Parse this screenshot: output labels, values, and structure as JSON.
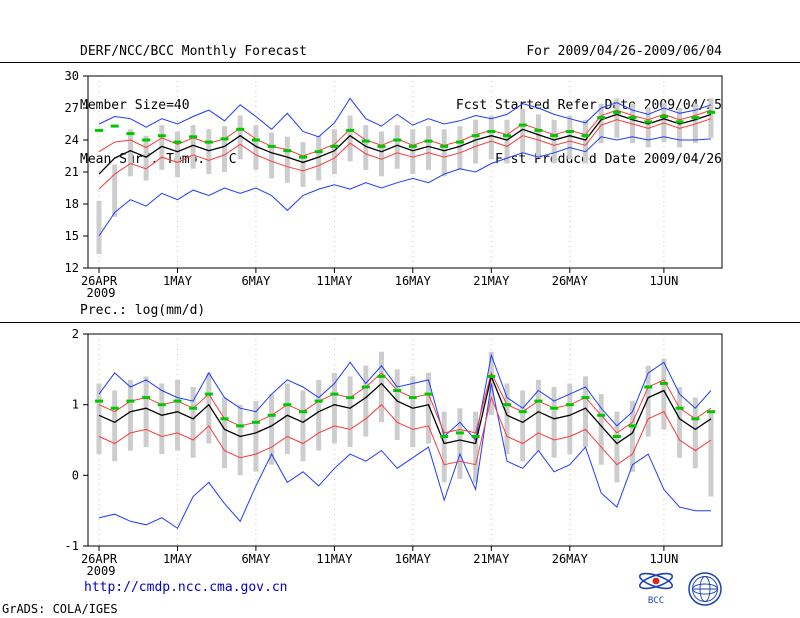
{
  "header": {
    "title": "DERF/NCC/BCC Monthly Forecast",
    "member_size": "Member Size=40",
    "temp_label": "Mean Surf. Temp.: °C",
    "forecast_range": "For 2009/04/26-2009/06/04",
    "refer_date": "Fcst Started Refer Date 2009/04/25",
    "produced_date": "Fcst Produced Date 2009/04/26"
  },
  "prec_label": "Prec.: log(mm/d)",
  "footer": {
    "url": "http://cmdp.ncc.cma.gov.cn",
    "credit": "GrADS: COLA/IGES",
    "bcc_logo_text": "BCC"
  },
  "colors": {
    "ensemble_bounds": "#1e3cff",
    "quartiles": "#fa3c3c",
    "mean": "#000000",
    "observation": "#00c800",
    "spread_bars": "#cdcdcd",
    "url": "#0000cc"
  },
  "chart_data": [
    {
      "id": "temp",
      "type": "line",
      "title": "Mean Surf. Temp.: °C",
      "ylabel": "°C",
      "ylim": [
        12,
        30
      ],
      "yticks": [
        12,
        15,
        18,
        21,
        24,
        27,
        30
      ],
      "xlim": [
        -0.7,
        39.7
      ],
      "grid": "dotted-vertical-at-xticks",
      "legend": "none",
      "xticks": [
        {
          "pos": 0,
          "label": "26APR",
          "sublabel": "2009"
        },
        {
          "pos": 5,
          "label": "1MAY"
        },
        {
          "pos": 10,
          "label": "6MAY"
        },
        {
          "pos": 15,
          "label": "11MAY"
        },
        {
          "pos": 20,
          "label": "16MAY"
        },
        {
          "pos": 25,
          "label": "21MAY"
        },
        {
          "pos": 30,
          "label": "26MAY"
        },
        {
          "pos": 36,
          "label": "1JUN"
        }
      ],
      "series": [
        {
          "name": "member-spread-bars",
          "style": "bars",
          "color": "#cdcdcd",
          "low": [
            13.3,
            16.8,
            20.6,
            20.2,
            21.2,
            20.5,
            21.3,
            20.8,
            21.0,
            22.2,
            21.2,
            20.4,
            20.0,
            19.6,
            20.2,
            20.8,
            22.0,
            21.2,
            20.6,
            21.3,
            20.8,
            21.2,
            20.6,
            21.2,
            21.8,
            22.2,
            21.8,
            22.8,
            22.3,
            21.8,
            22.2,
            21.8,
            23.7,
            24.2,
            23.7,
            23.3,
            23.8,
            23.3,
            23.7,
            24.2
          ],
          "high": [
            18.3,
            21.7,
            25.0,
            24.4,
            25.4,
            24.8,
            25.4,
            25.0,
            25.3,
            26.3,
            25.4,
            24.7,
            24.3,
            23.8,
            24.4,
            25.0,
            26.3,
            25.4,
            24.8,
            25.4,
            25.0,
            25.3,
            25.0,
            25.3,
            25.9,
            26.3,
            25.9,
            26.9,
            26.4,
            25.9,
            26.3,
            25.9,
            27.4,
            27.9,
            27.4,
            27.0,
            27.5,
            27.0,
            27.4,
            27.9
          ]
        },
        {
          "name": "ensemble-max",
          "style": "line",
          "color": "#1e3cff",
          "width": 1,
          "values": [
            25.5,
            26.2,
            26.0,
            25.2,
            26.0,
            25.5,
            26.2,
            26.8,
            25.8,
            27.3,
            26.2,
            25.0,
            26.5,
            24.8,
            24.3,
            25.6,
            27.9,
            26.0,
            25.3,
            26.4,
            25.4,
            26.0,
            25.5,
            25.8,
            26.3,
            26.0,
            26.4,
            27.4,
            27.0,
            26.4,
            26.0,
            25.6,
            27.0,
            27.5,
            26.8,
            26.4,
            27.0,
            26.5,
            26.8,
            27.3
          ]
        },
        {
          "name": "ensemble-min",
          "style": "line",
          "color": "#1e3cff",
          "width": 1,
          "values": [
            15.0,
            17.2,
            18.4,
            17.8,
            19.0,
            18.4,
            19.3,
            18.8,
            19.5,
            19.0,
            19.5,
            18.8,
            17.4,
            18.8,
            19.4,
            19.8,
            19.4,
            20.0,
            19.5,
            20.0,
            20.4,
            20.0,
            20.8,
            21.3,
            21.0,
            21.8,
            22.3,
            22.8,
            22.4,
            22.8,
            23.3,
            22.9,
            24.3,
            24.0,
            24.3,
            24.0,
            24.3,
            24.0,
            24.0,
            24.1
          ]
        },
        {
          "name": "upper-quartile",
          "style": "line",
          "color": "#fa3c3c",
          "width": 1,
          "values": [
            22.9,
            23.8,
            24.0,
            23.3,
            24.2,
            23.6,
            24.2,
            23.7,
            24.1,
            25.1,
            24.1,
            23.4,
            23.1,
            22.5,
            23.0,
            23.6,
            25.0,
            24.0,
            23.5,
            24.1,
            23.5,
            24.0,
            23.5,
            23.9,
            24.5,
            24.9,
            24.5,
            25.5,
            25.0,
            24.5,
            24.9,
            24.5,
            26.3,
            26.8,
            26.3,
            25.9,
            26.4,
            25.9,
            26.3,
            26.8
          ]
        },
        {
          "name": "lower-quartile",
          "style": "line",
          "color": "#fa3c3c",
          "width": 1,
          "values": [
            19.4,
            20.8,
            21.8,
            21.3,
            22.4,
            21.9,
            22.6,
            22.1,
            22.6,
            23.6,
            22.6,
            22.0,
            21.5,
            21.1,
            21.6,
            22.3,
            23.7,
            22.7,
            22.2,
            22.8,
            22.4,
            22.8,
            22.4,
            22.8,
            23.4,
            23.9,
            23.4,
            24.4,
            24.0,
            23.5,
            23.9,
            23.5,
            25.4,
            25.9,
            25.5,
            25.1,
            25.6,
            25.1,
            25.5,
            26.0
          ]
        },
        {
          "name": "ensemble-mean",
          "style": "line",
          "color": "#000000",
          "width": 1.3,
          "values": [
            20.8,
            22.3,
            23.0,
            22.4,
            23.4,
            22.9,
            23.5,
            23.0,
            23.4,
            24.4,
            23.4,
            22.8,
            22.4,
            21.9,
            22.4,
            23.0,
            24.4,
            23.4,
            22.9,
            23.5,
            23.0,
            23.4,
            23.0,
            23.4,
            24.0,
            24.4,
            24.0,
            25.0,
            24.5,
            24.0,
            24.4,
            24.0,
            25.9,
            26.4,
            25.9,
            25.5,
            26.0,
            25.5,
            25.9,
            26.4
          ]
        },
        {
          "name": "observation-dashes",
          "style": "dash-markers",
          "color": "#00c800",
          "values": [
            24.9,
            25.3,
            24.6,
            24.0,
            24.4,
            23.8,
            24.3,
            23.8,
            24.1,
            25.0,
            24.0,
            23.4,
            23.0,
            22.4,
            22.9,
            23.4,
            24.9,
            23.9,
            23.4,
            24.0,
            23.4,
            23.9,
            23.4,
            23.8,
            24.4,
            24.8,
            24.4,
            25.4,
            24.9,
            24.4,
            24.8,
            24.4,
            26.1,
            26.6,
            26.1,
            25.7,
            26.2,
            25.7,
            26.1,
            26.6
          ]
        }
      ]
    },
    {
      "id": "prec",
      "type": "line",
      "title": "Prec.: log(mm/d)",
      "ylabel": "log(mm/d)",
      "ylim": [
        -1,
        2
      ],
      "yticks": [
        -1,
        0,
        1,
        2
      ],
      "xlim": [
        -0.7,
        39.7
      ],
      "grid": "dotted-vertical-at-xticks",
      "legend": "none",
      "xticks": [
        {
          "pos": 0,
          "label": "26APR",
          "sublabel": "2009"
        },
        {
          "pos": 5,
          "label": "1MAY"
        },
        {
          "pos": 10,
          "label": "6MAY"
        },
        {
          "pos": 15,
          "label": "11MAY"
        },
        {
          "pos": 20,
          "label": "16MAY"
        },
        {
          "pos": 25,
          "label": "21MAY"
        },
        {
          "pos": 30,
          "label": "26MAY"
        },
        {
          "pos": 36,
          "label": "1JUN"
        }
      ],
      "series": [
        {
          "name": "member-spread-bars",
          "style": "bars",
          "color": "#cdcdcd",
          "low": [
            0.3,
            0.2,
            0.35,
            0.4,
            0.3,
            0.35,
            0.25,
            0.45,
            0.1,
            0.0,
            0.05,
            0.15,
            0.3,
            0.2,
            0.35,
            0.45,
            0.4,
            0.55,
            0.75,
            0.5,
            0.4,
            0.45,
            -0.1,
            -0.05,
            -0.1,
            0.85,
            0.3,
            0.2,
            0.35,
            0.25,
            0.3,
            0.4,
            0.15,
            -0.1,
            0.05,
            0.55,
            0.65,
            0.25,
            0.1,
            -0.3
          ],
          "high": [
            1.3,
            1.2,
            1.35,
            1.4,
            1.3,
            1.35,
            1.25,
            1.45,
            1.1,
            1.0,
            1.05,
            1.15,
            1.3,
            1.2,
            1.35,
            1.45,
            1.4,
            1.55,
            1.75,
            1.5,
            1.4,
            1.45,
            0.9,
            0.95,
            0.9,
            1.75,
            1.3,
            1.2,
            1.35,
            1.25,
            1.3,
            1.4,
            1.15,
            0.9,
            1.05,
            1.55,
            1.65,
            1.25,
            1.1,
            0.9
          ]
        },
        {
          "name": "ensemble-max",
          "style": "line",
          "color": "#1e3cff",
          "width": 1,
          "values": [
            1.15,
            1.45,
            1.25,
            1.35,
            1.2,
            1.1,
            1.05,
            1.45,
            1.1,
            0.95,
            0.9,
            1.15,
            1.35,
            1.25,
            1.1,
            1.3,
            1.6,
            1.3,
            1.55,
            1.25,
            1.3,
            1.35,
            0.55,
            0.75,
            0.5,
            1.7,
            1.1,
            0.95,
            1.2,
            1.05,
            1.15,
            1.25,
            0.95,
            0.7,
            0.9,
            1.45,
            1.6,
            1.15,
            0.95,
            1.2
          ]
        },
        {
          "name": "ensemble-min",
          "style": "line",
          "color": "#1e3cff",
          "width": 1,
          "values": [
            -0.6,
            -0.55,
            -0.65,
            -0.7,
            -0.6,
            -0.75,
            -0.3,
            -0.1,
            -0.4,
            -0.65,
            -0.15,
            0.3,
            -0.1,
            0.05,
            -0.15,
            0.1,
            0.3,
            0.2,
            0.35,
            0.1,
            0.25,
            0.4,
            -0.35,
            0.3,
            -0.2,
            1.3,
            0.2,
            0.1,
            0.35,
            0.05,
            0.15,
            0.4,
            -0.25,
            -0.45,
            0.15,
            0.3,
            -0.2,
            -0.45,
            -0.5,
            -0.5
          ]
        },
        {
          "name": "upper-quartile",
          "style": "line",
          "color": "#fa3c3c",
          "width": 1,
          "values": [
            1.0,
            0.9,
            1.05,
            1.1,
            1.0,
            1.05,
            0.95,
            1.15,
            0.8,
            0.7,
            0.75,
            0.85,
            1.0,
            0.9,
            1.05,
            1.15,
            1.1,
            1.25,
            1.45,
            1.2,
            1.1,
            1.15,
            0.6,
            0.65,
            0.6,
            1.45,
            1.0,
            0.9,
            1.05,
            0.95,
            1.0,
            1.1,
            0.85,
            0.6,
            0.75,
            1.25,
            1.35,
            0.95,
            0.8,
            0.95
          ]
        },
        {
          "name": "lower-quartile",
          "style": "line",
          "color": "#fa3c3c",
          "width": 1,
          "values": [
            0.55,
            0.45,
            0.6,
            0.65,
            0.55,
            0.6,
            0.5,
            0.7,
            0.35,
            0.25,
            0.3,
            0.4,
            0.55,
            0.45,
            0.6,
            0.7,
            0.65,
            0.8,
            1.0,
            0.75,
            0.65,
            0.7,
            0.15,
            0.2,
            0.15,
            1.1,
            0.55,
            0.45,
            0.6,
            0.5,
            0.55,
            0.65,
            0.4,
            0.15,
            0.3,
            0.8,
            0.9,
            0.5,
            0.35,
            0.5
          ]
        },
        {
          "name": "ensemble-mean",
          "style": "line",
          "color": "#000000",
          "width": 1.3,
          "values": [
            0.85,
            0.75,
            0.9,
            0.95,
            0.85,
            0.9,
            0.8,
            1.0,
            0.65,
            0.55,
            0.6,
            0.7,
            0.85,
            0.75,
            0.9,
            1.0,
            0.95,
            1.1,
            1.3,
            1.05,
            0.95,
            1.0,
            0.45,
            0.5,
            0.45,
            1.4,
            0.85,
            0.75,
            0.9,
            0.8,
            0.85,
            0.95,
            0.7,
            0.45,
            0.6,
            1.1,
            1.2,
            0.8,
            0.65,
            0.8
          ]
        },
        {
          "name": "observation-dashes",
          "style": "dash-markers",
          "color": "#00c800",
          "values": [
            1.05,
            0.95,
            1.05,
            1.1,
            1.0,
            1.05,
            0.95,
            1.15,
            0.8,
            0.7,
            0.75,
            0.85,
            1.0,
            0.9,
            1.05,
            1.15,
            1.1,
            1.25,
            1.4,
            1.2,
            1.1,
            1.15,
            0.55,
            0.6,
            0.55,
            1.4,
            1.0,
            0.9,
            1.05,
            0.95,
            1.0,
            1.1,
            0.85,
            0.55,
            0.7,
            1.25,
            1.3,
            0.95,
            0.8,
            0.9
          ]
        }
      ]
    }
  ]
}
